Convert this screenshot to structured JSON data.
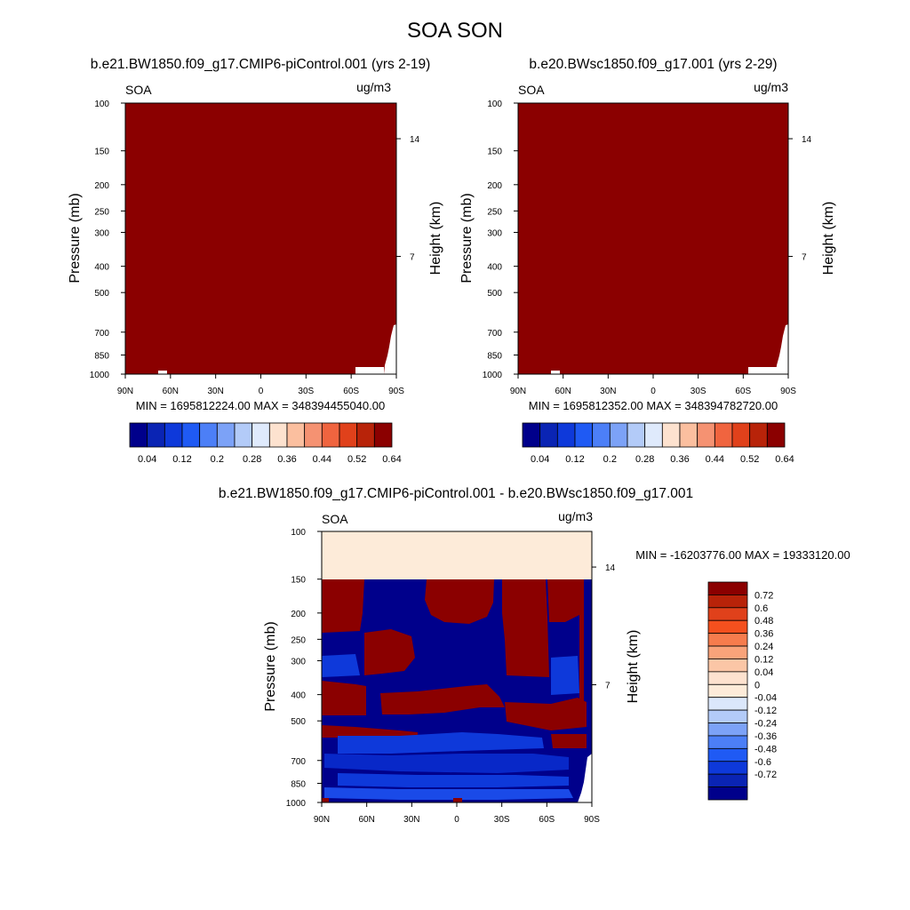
{
  "figure": {
    "title": "SOA SON"
  },
  "colors": {
    "dark_red": "#8b0000",
    "dark_blue": "#00008b",
    "peach": "#fdebd9",
    "blue_mid": "#0828c8",
    "blue_band": "#1a4ae8"
  },
  "chart_data": [
    {
      "type": "heatmap",
      "title": "b.e21.BW1850.f09_g17.CMIP6-piControl.001 (yrs 2-19)",
      "variable": "SOA",
      "units": "ug/m3",
      "ylabel": "Pressure (mb)",
      "ylabel_right": "Height (km)",
      "x_ticks": [
        "90N",
        "60N",
        "30N",
        "0",
        "30S",
        "60S",
        "90S"
      ],
      "y_ticks": [
        "100",
        "150",
        "200",
        "250",
        "300",
        "400",
        "500",
        "700",
        "850",
        "1000"
      ],
      "y_ticks_right": [
        "14",
        "7"
      ],
      "stats": "MIN = 1695812224.00  MAX = 348394455040.00",
      "colorbar_labels": [
        "0.04",
        "0.12",
        "0.2",
        "0.28",
        "0.36",
        "0.44",
        "0.52",
        "0.64"
      ],
      "colorbar_colors": [
        "#00008b",
        "#0a24b4",
        "#0e39da",
        "#1f5af4",
        "#4c7ff7",
        "#7ca2f7",
        "#b3cbf8",
        "#dfeafc",
        "#fde2cf",
        "#fbbf9f",
        "#f59272",
        "#f0643f",
        "#e0411b",
        "#b82309",
        "#8b0000"
      ]
    },
    {
      "type": "heatmap",
      "title": "b.e20.BWsc1850.f09_g17.001 (yrs 2-29)",
      "variable": "SOA",
      "units": "ug/m3",
      "ylabel": "Pressure (mb)",
      "ylabel_right": "Height (km)",
      "x_ticks": [
        "90N",
        "60N",
        "30N",
        "0",
        "30S",
        "60S",
        "90S"
      ],
      "y_ticks": [
        "100",
        "150",
        "200",
        "250",
        "300",
        "400",
        "500",
        "700",
        "850",
        "1000"
      ],
      "y_ticks_right": [
        "14",
        "7"
      ],
      "stats": "MIN = 1695812352.00  MAX = 348394782720.00",
      "colorbar_labels": [
        "0.04",
        "0.12",
        "0.2",
        "0.28",
        "0.36",
        "0.44",
        "0.52",
        "0.64"
      ],
      "colorbar_colors": [
        "#00008b",
        "#0a24b4",
        "#0e39da",
        "#1f5af4",
        "#4c7ff7",
        "#7ca2f7",
        "#b3cbf8",
        "#dfeafc",
        "#fde2cf",
        "#fbbf9f",
        "#f59272",
        "#f0643f",
        "#e0411b",
        "#b82309",
        "#8b0000"
      ]
    },
    {
      "type": "heatmap",
      "title": "b.e21.BW1850.f09_g17.CMIP6-piControl.001 - b.e20.BWsc1850.f09_g17.001",
      "variable": "SOA",
      "units": "ug/m3",
      "ylabel": "Pressure (mb)",
      "ylabel_right": "Height (km)",
      "x_ticks": [
        "90N",
        "60N",
        "30N",
        "0",
        "30S",
        "60S",
        "90S"
      ],
      "y_ticks": [
        "100",
        "150",
        "200",
        "250",
        "300",
        "400",
        "500",
        "700",
        "850",
        "1000"
      ],
      "y_ticks_right": [
        "14",
        "7"
      ],
      "stats": "MIN = -16203776.00  MAX = 19333120.00",
      "colorbar_labels": [
        "0.72",
        "0.6",
        "0.48",
        "0.36",
        "0.24",
        "0.12",
        "0.04",
        "0",
        "-0.04",
        "-0.12",
        "-0.24",
        "-0.36",
        "-0.48",
        "-0.6",
        "-0.72"
      ],
      "colorbar_colors": [
        "#8b0000",
        "#b82309",
        "#e0411b",
        "#f4501e",
        "#f67c4d",
        "#f9a37a",
        "#fbc6a6",
        "#fde2cf",
        "#fdebd9",
        "#dbe7fb",
        "#b3cbf8",
        "#7ca2f7",
        "#4c7ff7",
        "#1f5af4",
        "#0e39da",
        "#0a24b4",
        "#00008b"
      ]
    }
  ]
}
